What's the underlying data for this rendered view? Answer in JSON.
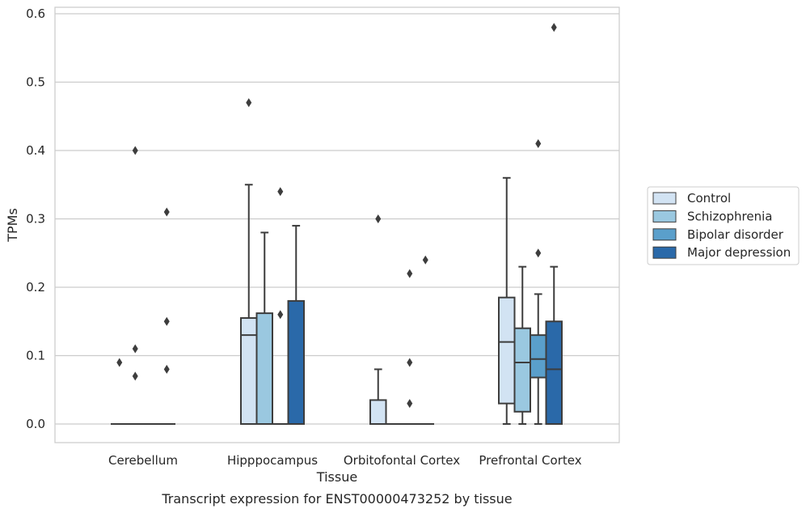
{
  "chart_data": {
    "type": "boxplot",
    "title": "",
    "caption": "Transcript expression for ENST00000473252 by tissue",
    "xlabel": "Tissue",
    "ylabel": "TPMs",
    "ylim": [
      -0.028,
      0.61
    ],
    "yticks": [
      0.0,
      0.1,
      0.2,
      0.3,
      0.4,
      0.5,
      0.6
    ],
    "ytick_labels": [
      "0.0",
      "0.1",
      "0.2",
      "0.3",
      "0.4",
      "0.5",
      "0.6"
    ],
    "grid": "horizontal",
    "legend_position": "right, outside plot",
    "categories": [
      "Cerebellum",
      "Hipppocampus",
      "Orbitofontal Cortex",
      "Prefrontal Cortex"
    ],
    "series": [
      {
        "name": "Control",
        "color": "#d2e3f3",
        "boxes": [
          {
            "q1": 0,
            "median": 0,
            "q3": 0,
            "whisker_low": 0,
            "whisker_high": 0,
            "outliers": [
              0.09
            ]
          },
          {
            "q1": 0,
            "median": 0.13,
            "q3": 0.155,
            "whisker_low": 0,
            "whisker_high": 0.35,
            "outliers": [
              0.47
            ]
          },
          {
            "q1": 0,
            "median": 0,
            "q3": 0.035,
            "whisker_low": 0,
            "whisker_high": 0.08,
            "outliers": [
              0.3
            ]
          },
          {
            "q1": 0.03,
            "median": 0.12,
            "q3": 0.185,
            "whisker_low": 0,
            "whisker_high": 0.36,
            "outliers": []
          }
        ]
      },
      {
        "name": "Schizophrenia",
        "color": "#9ac8e0",
        "boxes": [
          {
            "q1": 0,
            "median": 0,
            "q3": 0,
            "whisker_low": 0,
            "whisker_high": 0,
            "outliers": [
              0.11,
              0.07,
              0.4
            ]
          },
          {
            "q1": 0,
            "median": 0,
            "q3": 0.162,
            "whisker_low": 0,
            "whisker_high": 0.28,
            "outliers": []
          },
          {
            "q1": 0,
            "median": 0,
            "q3": 0,
            "whisker_low": 0,
            "whisker_high": 0,
            "outliers": []
          },
          {
            "q1": 0.018,
            "median": 0.09,
            "q3": 0.14,
            "whisker_low": 0,
            "whisker_high": 0.23,
            "outliers": []
          }
        ]
      },
      {
        "name": "Bipolar disorder",
        "color": "#5a9fcb",
        "boxes": [
          {
            "q1": 0,
            "median": 0,
            "q3": 0,
            "whisker_low": 0,
            "whisker_high": 0,
            "outliers": []
          },
          {
            "q1": 0,
            "median": 0,
            "q3": 0,
            "whisker_low": 0,
            "whisker_high": 0,
            "outliers": [
              0.34,
              0.16
            ]
          },
          {
            "q1": 0,
            "median": 0,
            "q3": 0,
            "whisker_low": 0,
            "whisker_high": 0,
            "outliers": [
              0.22,
              0.09,
              0.03
            ]
          },
          {
            "q1": 0.068,
            "median": 0.095,
            "q3": 0.13,
            "whisker_low": 0,
            "whisker_high": 0.19,
            "outliers": [
              0.41,
              0.25
            ]
          }
        ]
      },
      {
        "name": "Major depression",
        "color": "#2a69a9",
        "boxes": [
          {
            "q1": 0,
            "median": 0,
            "q3": 0,
            "whisker_low": 0,
            "whisker_high": 0,
            "outliers": [
              0.31,
              0.15,
              0.08
            ]
          },
          {
            "q1": 0,
            "median": 0,
            "q3": 0.18,
            "whisker_low": 0,
            "whisker_high": 0.29,
            "outliers": []
          },
          {
            "q1": 0,
            "median": 0,
            "q3": 0,
            "whisker_low": 0,
            "whisker_high": 0,
            "outliers": [
              0.24
            ]
          },
          {
            "q1": 0,
            "median": 0.08,
            "q3": 0.15,
            "whisker_low": 0,
            "whisker_high": 0.23,
            "outliers": [
              0.58
            ]
          }
        ]
      }
    ]
  }
}
